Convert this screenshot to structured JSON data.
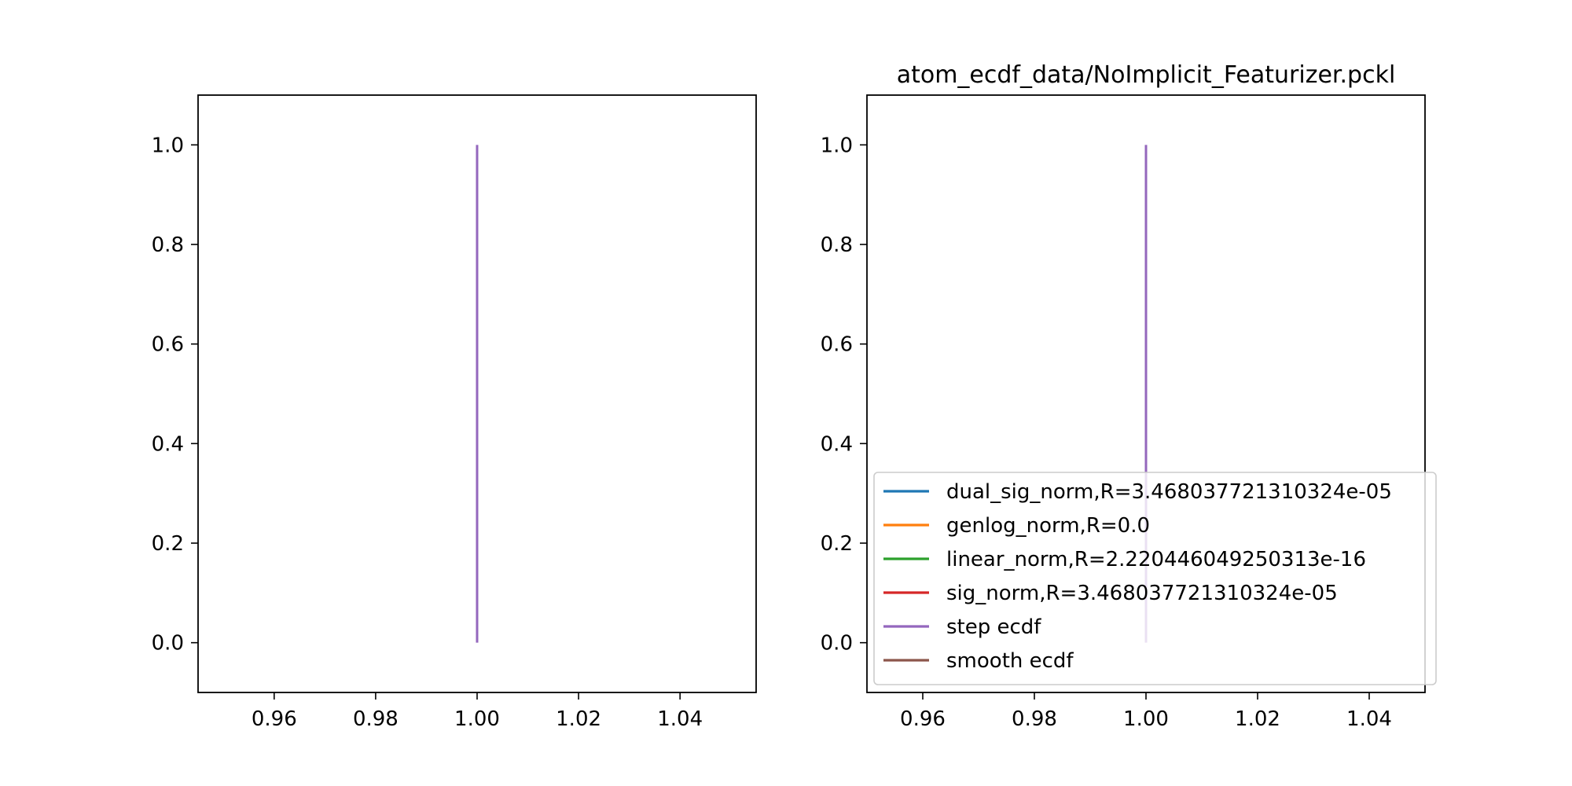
{
  "chart_data": [
    {
      "type": "line",
      "title": "",
      "xlabel": "",
      "ylabel": "",
      "xlim": [
        0.945,
        1.055
      ],
      "ylim": [
        -0.1,
        1.1
      ],
      "xticks": [
        0.96,
        0.98,
        1.0,
        1.02,
        1.04
      ],
      "xtick_labels": [
        "0.96",
        "0.98",
        "1.00",
        "1.02",
        "1.04"
      ],
      "yticks": [
        0.0,
        0.2,
        0.4,
        0.6,
        0.8,
        1.0
      ],
      "ytick_labels": [
        "0.0",
        "0.2",
        "0.4",
        "0.6",
        "0.8",
        "1.0"
      ],
      "grid": false,
      "legend": false,
      "series": [
        {
          "color": "#9467bd",
          "x": [
            1.0,
            1.0
          ],
          "y": [
            0.0,
            1.0
          ]
        }
      ]
    },
    {
      "type": "line",
      "title": "atom_ecdf_data/NoImplicit_Featurizer.pckl",
      "xlabel": "",
      "ylabel": "",
      "xlim": [
        0.95,
        1.05
      ],
      "ylim": [
        -0.1,
        1.1
      ],
      "xticks": [
        0.96,
        0.98,
        1.0,
        1.02,
        1.04
      ],
      "xtick_labels": [
        "0.96",
        "0.98",
        "1.00",
        "1.02",
        "1.04"
      ],
      "yticks": [
        0.0,
        0.2,
        0.4,
        0.6,
        0.8,
        1.0
      ],
      "ytick_labels": [
        "0.0",
        "0.2",
        "0.4",
        "0.6",
        "0.8",
        "1.0"
      ],
      "grid": false,
      "legend": true,
      "legend_position": "lower right",
      "series": [
        {
          "name": "dual_sig_norm,R=3.468037721310324e-05",
          "color": "#1f77b4",
          "x": [],
          "y": []
        },
        {
          "name": "genlog_norm,R=0.0",
          "color": "#ff7f0e",
          "x": [],
          "y": []
        },
        {
          "name": "linear_norm,R=2.220446049250313e-16",
          "color": "#2ca02c",
          "x": [],
          "y": []
        },
        {
          "name": "sig_norm,R=3.468037721310324e-05",
          "color": "#d62728",
          "x": [],
          "y": []
        },
        {
          "name": "step ecdf",
          "color": "#9467bd",
          "x": [
            1.0,
            1.0
          ],
          "y": [
            0.0,
            1.0
          ]
        },
        {
          "name": "smooth ecdf",
          "color": "#8c564b",
          "x": [],
          "y": []
        }
      ]
    }
  ]
}
